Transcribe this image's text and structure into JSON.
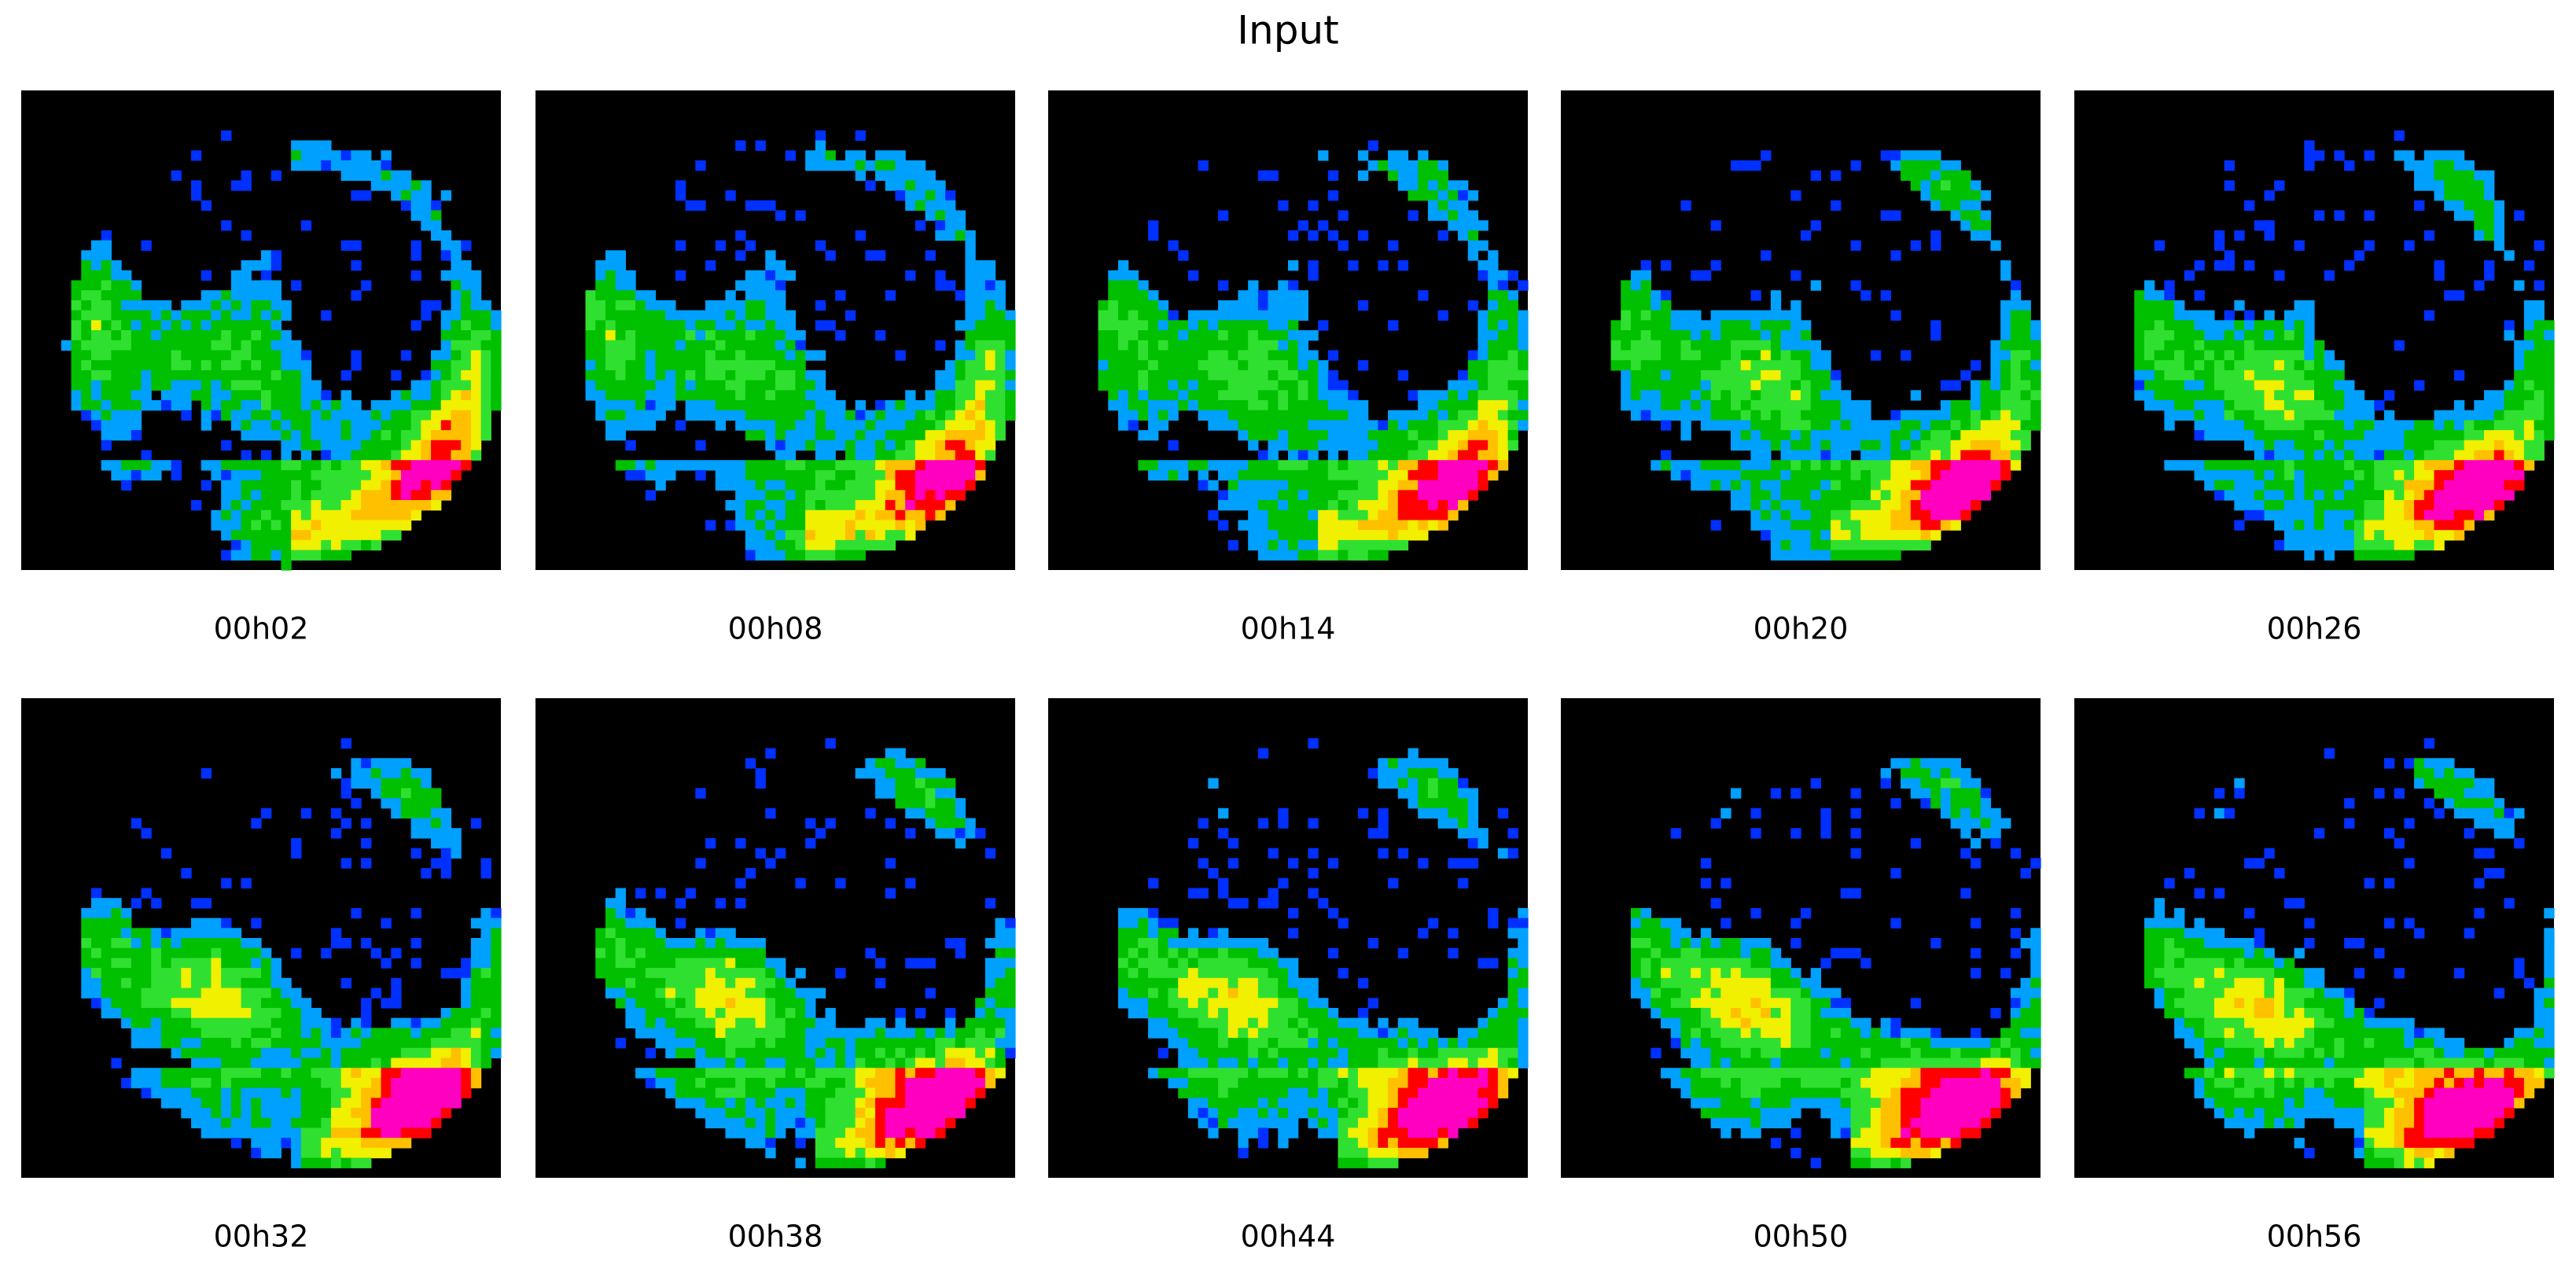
{
  "title": "Input",
  "panels": [
    {
      "label": "00h02"
    },
    {
      "label": "00h08"
    },
    {
      "label": "00h14"
    },
    {
      "label": "00h20"
    },
    {
      "label": "00h26"
    },
    {
      "label": "00h32"
    },
    {
      "label": "00h38"
    },
    {
      "label": "00h44"
    },
    {
      "label": "00h50"
    },
    {
      "label": "00h56"
    }
  ]
}
